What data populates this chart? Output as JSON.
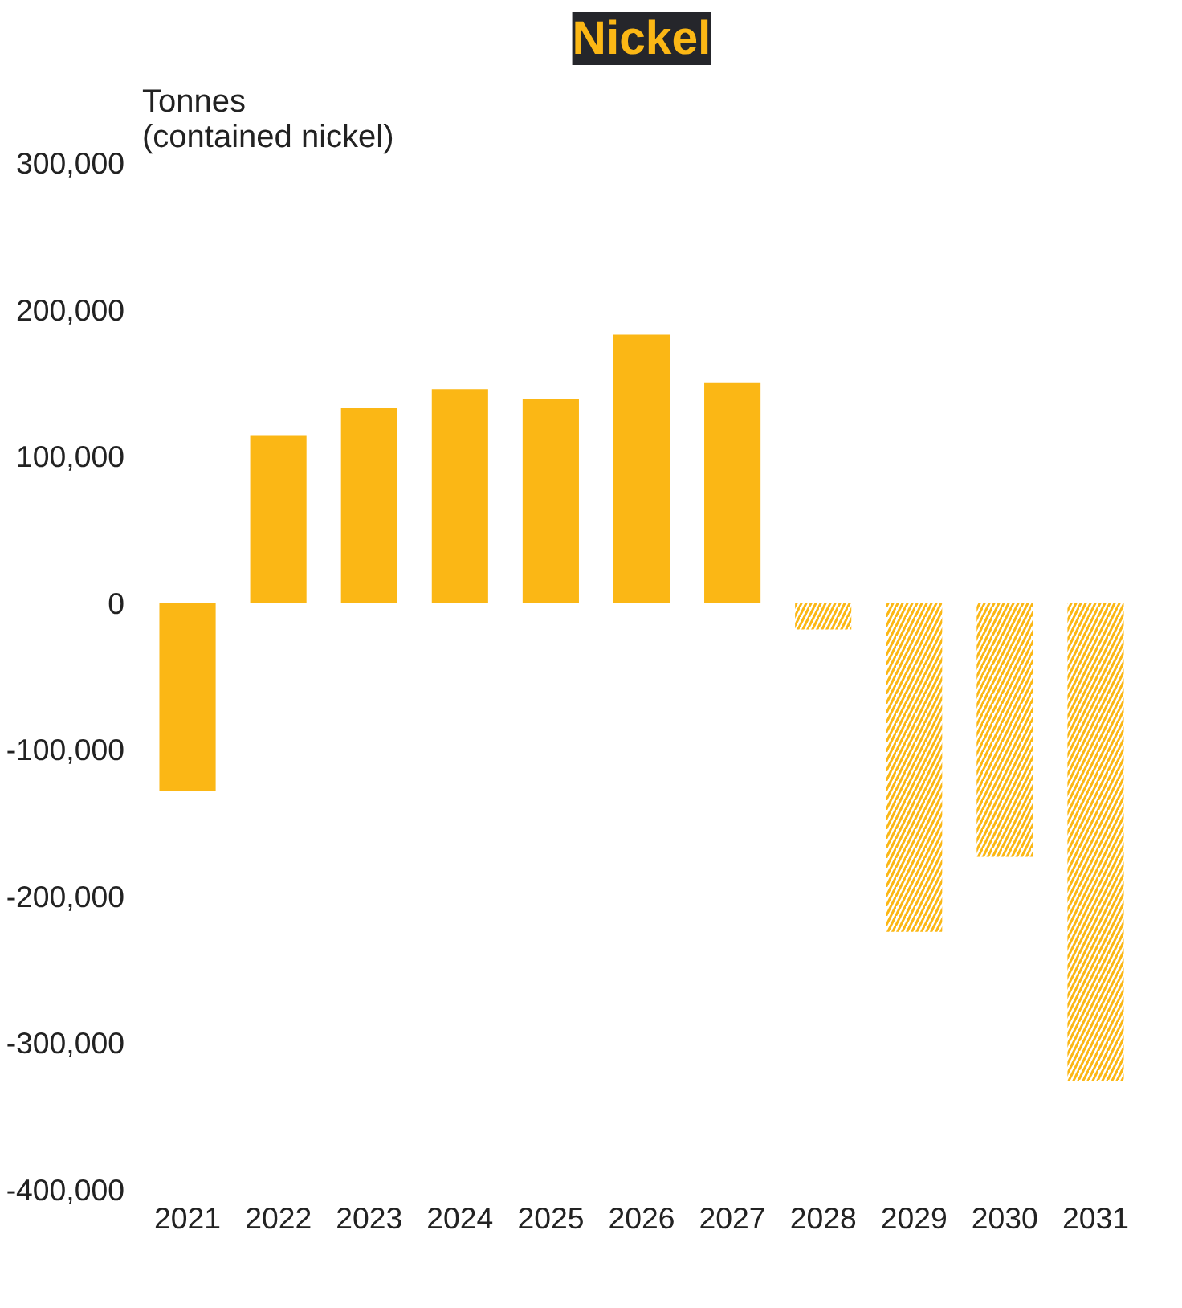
{
  "chart_data": {
    "type": "bar",
    "title": "Nickel",
    "ylabel": "Tonnes\n(contained nickel)",
    "categories": [
      "2021",
      "2022",
      "2023",
      "2024",
      "2025",
      "2026",
      "2027",
      "2028",
      "2029",
      "2030",
      "2031"
    ],
    "series": [
      {
        "color": "#fbb715",
        "values": [
          -128000,
          114000,
          133000,
          146000,
          139000,
          183000,
          150000,
          null,
          null,
          null,
          null
        ]
      },
      {
        "color": "#fbb715",
        "values": [
          null,
          null,
          null,
          null,
          null,
          null,
          null,
          -18000,
          -224000,
          -173000,
          -326000
        ]
      }
    ],
    "ylim": [
      -400000,
      300000
    ],
    "yticks": [
      {
        "value": -400000,
        "label": "-400,000"
      },
      {
        "value": -300000,
        "label": "-300,000"
      },
      {
        "value": -200000,
        "label": "-200,000"
      },
      {
        "value": -100000,
        "label": "-100,000"
      },
      {
        "value": 0,
        "label": "0"
      },
      {
        "value": 100000,
        "label": "100,000"
      },
      {
        "value": 200000,
        "label": "200,000"
      },
      {
        "value": 300000,
        "label": "300,000"
      }
    ],
    "grid": false
  }
}
